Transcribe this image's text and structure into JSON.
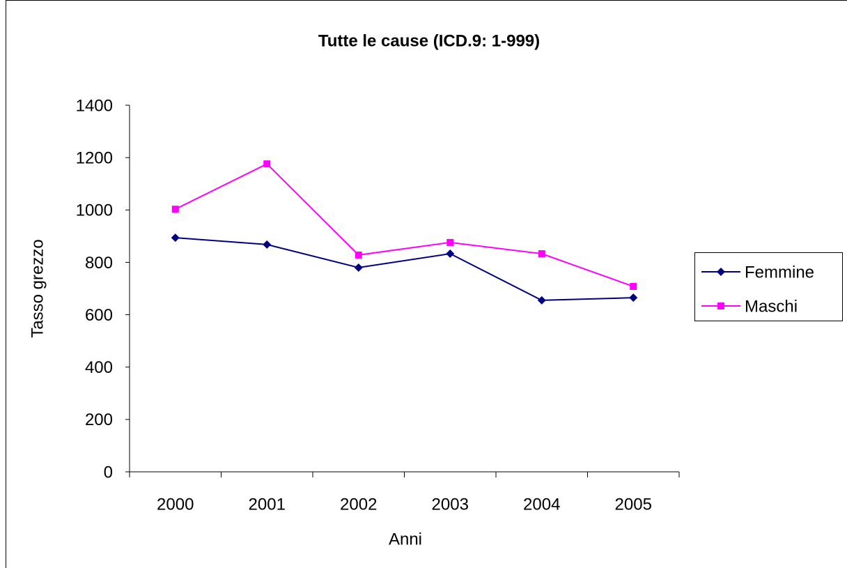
{
  "chart_data": {
    "type": "line",
    "title": "Tutte le cause (ICD.9: 1-999)",
    "x_label": "Anni",
    "y_label": "Tasso grezzo",
    "categories": [
      "2000",
      "2001",
      "2002",
      "2003",
      "2004",
      "2005"
    ],
    "series": [
      {
        "name": "Femmine",
        "color": "#000080",
        "marker": "diamond",
        "values": [
          894,
          868,
          780,
          833,
          655,
          665
        ]
      },
      {
        "name": "Maschi",
        "color": "#ff00ff",
        "marker": "square",
        "values": [
          1003,
          1176,
          828,
          876,
          833,
          708
        ]
      }
    ],
    "ylim": [
      0,
      1400
    ],
    "yticks": [
      0,
      200,
      400,
      600,
      800,
      1000,
      1200,
      1400
    ],
    "grid": false,
    "legend": "right"
  }
}
